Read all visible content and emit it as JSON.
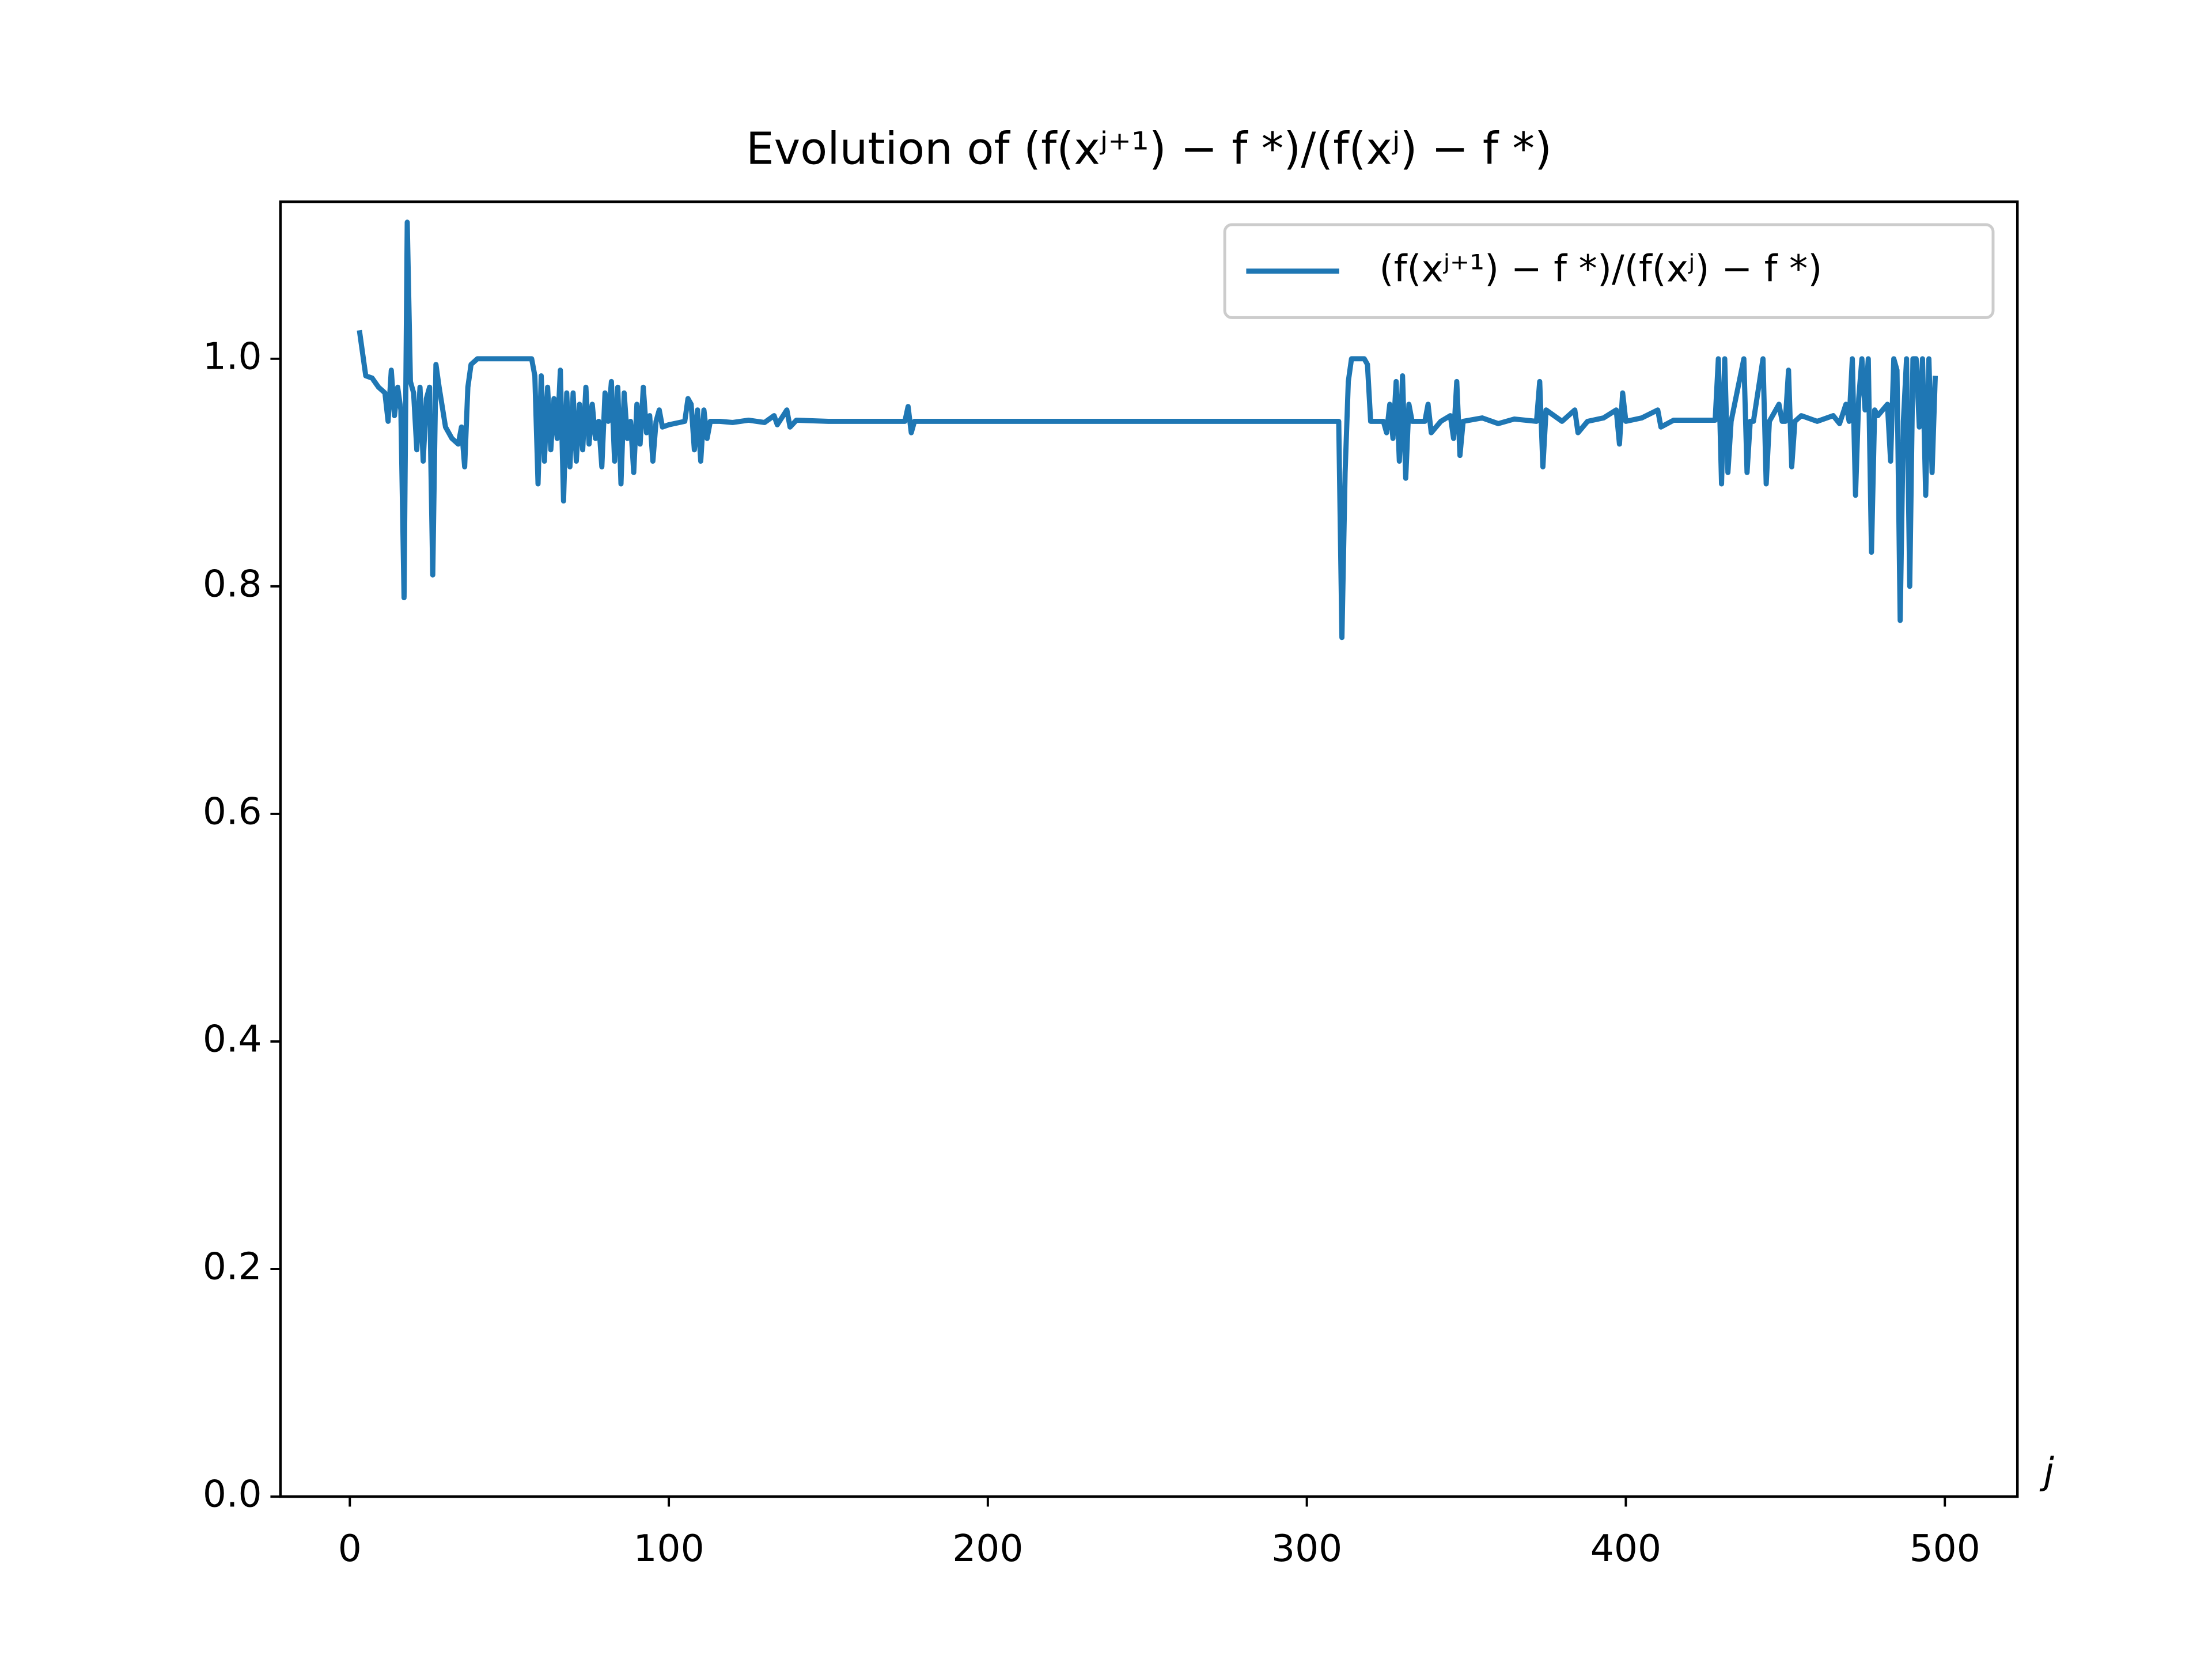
{
  "chart_data": {
    "type": "line",
    "title": "Evolution of (f(xʲ⁺¹) − f *)/(f(xʲ) − f *)",
    "x_label": "j",
    "xlim": [
      -21.75,
      522.75
    ],
    "ylim": [
      0,
      1.138
    ],
    "xticks": [
      0,
      100,
      200,
      300,
      400,
      500
    ],
    "yticks": [
      {
        "value": 0,
        "label": "0.0"
      },
      {
        "value": 0.2,
        "label": "0.2"
      },
      {
        "value": 0.4,
        "label": "0.4"
      },
      {
        "value": 0.6,
        "label": "0.6"
      },
      {
        "value": 0.8,
        "label": "0.8"
      },
      {
        "value": 1.0,
        "label": "1.0"
      }
    ],
    "grid": false,
    "legend": "upper right",
    "series": [
      {
        "name": "(f(xʲ⁺¹) − f *)/(f(xʲ) − f *)",
        "color": "#1f77b4",
        "x": [
          3,
          5,
          7,
          9,
          11,
          12,
          13,
          14,
          15,
          16,
          17,
          18,
          19,
          20,
          21,
          22,
          23,
          24,
          25,
          26,
          27,
          28,
          30,
          32,
          34,
          35,
          36,
          37,
          38,
          40,
          57,
          58,
          59,
          60,
          61,
          62,
          63,
          64,
          65,
          66,
          67,
          68,
          69,
          70,
          71,
          72,
          73,
          74,
          75,
          76,
          77,
          78,
          79,
          80,
          81,
          82,
          83,
          84,
          85,
          86,
          87,
          88,
          89,
          90,
          91,
          92,
          93,
          94,
          95,
          96,
          97,
          98,
          100,
          105,
          106,
          107,
          108,
          109,
          110,
          111,
          112,
          113,
          116,
          120,
          125,
          130,
          133,
          134,
          137,
          138,
          140,
          150,
          174,
          175,
          176,
          177,
          200,
          250,
          310,
          311,
          312,
          313,
          314,
          318,
          319,
          320,
          324,
          325,
          326,
          327,
          328,
          329,
          330,
          331,
          332,
          333,
          337,
          338,
          339,
          342,
          345,
          346,
          347,
          348,
          349,
          355,
          360,
          365,
          372,
          373,
          374,
          375,
          380,
          384,
          385,
          388,
          393,
          397,
          398,
          399,
          400,
          405,
          410,
          411,
          415,
          428,
          429,
          430,
          431,
          432,
          433,
          437,
          438,
          439,
          440,
          443,
          444,
          445,
          448,
          449,
          450,
          451,
          452,
          453,
          455,
          460,
          465,
          467,
          469,
          470,
          471,
          472,
          473,
          474,
          475,
          476,
          477,
          478,
          479,
          482,
          483,
          484,
          485,
          486,
          487,
          488,
          489,
          490,
          491,
          492,
          493,
          494,
          495,
          496,
          497
        ],
        "values": [
          1.025,
          0.985,
          0.983,
          0.975,
          0.97,
          0.945,
          0.99,
          0.95,
          0.975,
          0.955,
          0.79,
          1.12,
          0.98,
          0.97,
          0.92,
          0.975,
          0.91,
          0.965,
          0.975,
          0.81,
          0.995,
          0.975,
          0.94,
          0.93,
          0.925,
          0.94,
          0.905,
          0.975,
          0.995,
          1.0,
          1.0,
          0.985,
          0.89,
          0.985,
          0.91,
          0.975,
          0.92,
          0.965,
          0.93,
          0.99,
          0.875,
          0.97,
          0.905,
          0.97,
          0.91,
          0.96,
          0.92,
          0.975,
          0.925,
          0.96,
          0.93,
          0.945,
          0.905,
          0.97,
          0.945,
          0.98,
          0.91,
          0.975,
          0.89,
          0.97,
          0.93,
          0.945,
          0.9,
          0.96,
          0.925,
          0.975,
          0.935,
          0.95,
          0.91,
          0.945,
          0.955,
          0.94,
          0.942,
          0.945,
          0.965,
          0.96,
          0.92,
          0.955,
          0.91,
          0.955,
          0.93,
          0.945,
          0.945,
          0.944,
          0.946,
          0.944,
          0.95,
          0.942,
          0.955,
          0.94,
          0.946,
          0.945,
          0.945,
          0.958,
          0.935,
          0.945,
          0.945,
          0.945,
          0.945,
          0.755,
          0.9,
          0.98,
          1.0,
          1.0,
          0.995,
          0.945,
          0.945,
          0.935,
          0.96,
          0.93,
          0.98,
          0.91,
          0.985,
          0.895,
          0.96,
          0.945,
          0.945,
          0.96,
          0.935,
          0.945,
          0.95,
          0.93,
          0.98,
          0.915,
          0.945,
          0.948,
          0.943,
          0.947,
          0.945,
          0.98,
          0.905,
          0.955,
          0.945,
          0.955,
          0.935,
          0.945,
          0.948,
          0.955,
          0.925,
          0.97,
          0.945,
          0.948,
          0.955,
          0.94,
          0.946,
          0.946,
          1.0,
          0.89,
          1.0,
          0.9,
          0.945,
          1.0,
          0.9,
          0.945,
          0.945,
          1.0,
          0.89,
          0.945,
          0.96,
          0.945,
          0.945,
          0.99,
          0.905,
          0.945,
          0.95,
          0.945,
          0.95,
          0.943,
          0.96,
          0.945,
          1.0,
          0.88,
          0.965,
          1.0,
          0.955,
          1.0,
          0.83,
          0.955,
          0.95,
          0.96,
          0.91,
          1.0,
          0.99,
          0.77,
          0.945,
          1.0,
          0.8,
          1.0,
          1.0,
          0.94,
          1.0,
          0.88,
          1.0,
          0.9,
          0.985
        ]
      }
    ]
  }
}
